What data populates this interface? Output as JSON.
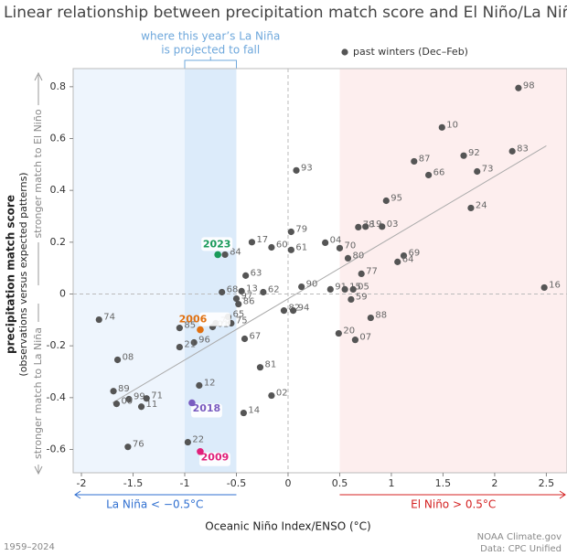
{
  "chart_data": {
    "type": "scatter",
    "title": "Linear relationship between precipitation match score and El Niño/La Niña strength",
    "x_label": "Oceanic Niño Index/ENSO (°C)",
    "y_label": "precipitation match score",
    "y_sublabel": "(observations versus expected patterns)",
    "y_upper_note": "stronger match to El Niño",
    "y_lower_note": "stronger match to La Niña",
    "footer_left": "1959–2024",
    "footer_right": [
      "NOAA Climate.gov",
      "Data: CPC Unified"
    ],
    "xlim": [
      -2.08,
      2.7
    ],
    "ylim": [
      -0.69,
      0.87
    ],
    "xticks": [
      -2,
      -1.5,
      -1,
      -0.5,
      0,
      0.5,
      1,
      1.5,
      2,
      2.5
    ],
    "yticks": [
      -0.6,
      -0.4,
      -0.2,
      0,
      0.2,
      0.4,
      0.6,
      0.8
    ],
    "la_nina": {
      "label": "La Niña < −0.5°C",
      "threshold": -0.5,
      "color": "#2f6fd0"
    },
    "el_nino": {
      "label": "El Niño > 0.5°C",
      "threshold": 0.5,
      "color": "#d42020"
    },
    "projected": {
      "label": [
        "where this year’s La Niña",
        "is projected to fall"
      ],
      "range": [
        -1,
        -0.5
      ],
      "color": "#6fa8dc"
    },
    "trend": {
      "x": [
        -1.7,
        2.5
      ],
      "y": [
        -0.42,
        0.572
      ]
    },
    "series": [
      {
        "name": "past winters (Dec–Feb)",
        "color": "#555555",
        "labels": [
          "98",
          "10",
          "87",
          "92",
          "83",
          "66",
          "73",
          "93",
          "95",
          "24",
          "78",
          "19",
          "03",
          "79",
          "04",
          "70",
          "17",
          "60",
          "61",
          "84",
          "80",
          "69",
          "64",
          "77",
          "63",
          "90",
          "91",
          "15",
          "05",
          "16",
          "68",
          "13",
          "62",
          "97",
          "86",
          "59",
          "82",
          "94",
          "74",
          "65",
          "88",
          "72",
          "75",
          "01",
          "85",
          "20",
          "07",
          "67",
          "96",
          "21",
          "08",
          "81",
          "12",
          "89",
          "99",
          "71",
          "02",
          "00",
          "11",
          "14",
          "22",
          "76"
        ],
        "x": [
          2.23,
          1.49,
          1.22,
          1.7,
          2.17,
          1.36,
          1.83,
          0.08,
          0.95,
          1.77,
          0.68,
          0.75,
          0.91,
          0.03,
          0.36,
          0.5,
          -0.35,
          -0.16,
          0.03,
          -0.61,
          0.58,
          1.12,
          1.06,
          0.71,
          -0.41,
          0.13,
          0.41,
          0.55,
          0.63,
          2.48,
          -0.64,
          -0.45,
          -0.24,
          -0.5,
          -0.48,
          0.61,
          -0.04,
          0.05,
          -1.83,
          -0.58,
          0.8,
          -0.7,
          -0.55,
          -0.73,
          -1.05,
          0.49,
          0.65,
          -0.42,
          -0.91,
          -1.05,
          -1.65,
          -0.27,
          -0.86,
          -1.69,
          -1.54,
          -1.37,
          -0.16,
          -1.66,
          -1.42,
          -0.43,
          -0.97,
          -1.55
        ],
        "values": [
          0.795,
          0.643,
          0.512,
          0.534,
          0.551,
          0.459,
          0.473,
          0.477,
          0.36,
          0.332,
          0.258,
          0.26,
          0.26,
          0.24,
          0.198,
          0.177,
          0.2,
          0.18,
          0.17,
          0.152,
          0.138,
          0.148,
          0.124,
          0.078,
          0.071,
          0.028,
          0.018,
          0.018,
          0.018,
          0.025,
          0.007,
          0.011,
          0.007,
          -0.018,
          -0.039,
          -0.021,
          -0.064,
          -0.064,
          -0.099,
          -0.088,
          -0.092,
          -0.113,
          -0.113,
          -0.127,
          -0.131,
          -0.152,
          -0.177,
          -0.173,
          -0.187,
          -0.205,
          -0.254,
          -0.283,
          -0.353,
          -0.375,
          -0.406,
          -0.403,
          -0.392,
          -0.424,
          -0.435,
          -0.459,
          -0.572,
          -0.59
        ]
      }
    ],
    "highlights": [
      {
        "label": "2023",
        "x": -0.68,
        "y": 0.152,
        "color": "#1a9a5a"
      },
      {
        "label": "2006",
        "x": -0.85,
        "y": -0.138,
        "color": "#e07010"
      },
      {
        "label": "2018",
        "x": -0.93,
        "y": -0.42,
        "color": "#7a5cc0"
      },
      {
        "label": "2009",
        "x": -0.85,
        "y": -0.608,
        "color": "#e0207a"
      }
    ]
  }
}
